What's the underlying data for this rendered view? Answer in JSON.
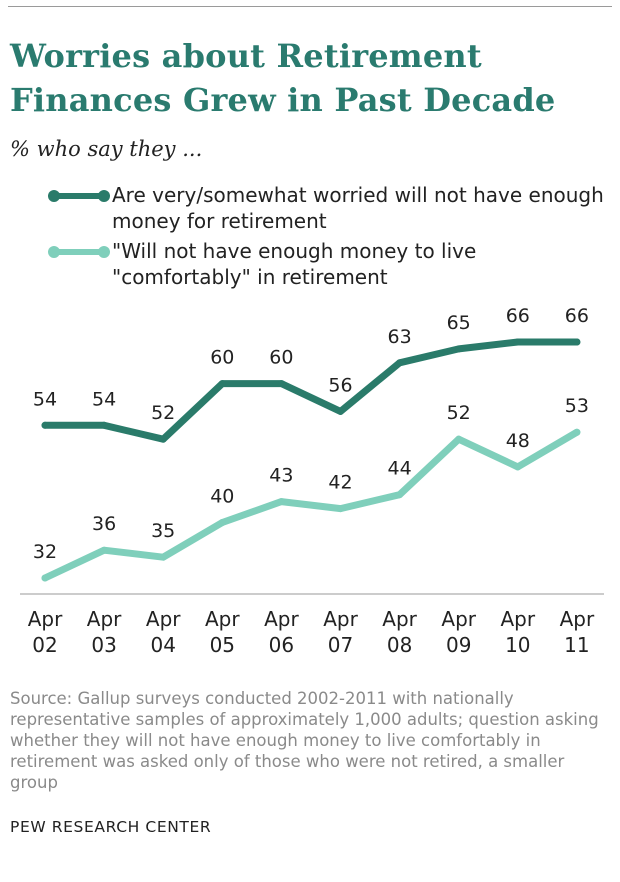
{
  "title": "Worries about Retirement Finances Grew in Past Decade",
  "subtitle": "% who say they ...",
  "legend": [
    {
      "label": "Are very/somewhat worried will not have enough money for retirement",
      "color": "#2a7b6a"
    },
    {
      "label": "\"Will not have enough money to live \"comfortably\" in retirement",
      "color": "#7fcfbb"
    }
  ],
  "chart_data": {
    "type": "line",
    "categories": [
      [
        "Apr",
        "02"
      ],
      [
        "Apr",
        "03"
      ],
      [
        "Apr",
        "04"
      ],
      [
        "Apr",
        "05"
      ],
      [
        "Apr",
        "06"
      ],
      [
        "Apr",
        "07"
      ],
      [
        "Apr",
        "08"
      ],
      [
        "Apr",
        "09"
      ],
      [
        "Apr",
        "10"
      ],
      [
        "Apr",
        "11"
      ]
    ],
    "series": [
      {
        "name": "Are very/somewhat worried will not have enough money for retirement",
        "color": "#2a7b6a",
        "values": [
          54,
          54,
          52,
          60,
          60,
          56,
          63,
          65,
          66,
          66
        ]
      },
      {
        "name": "\"Will not have enough money to live \"comfortably\" in retirement",
        "color": "#7fcfbb",
        "values": [
          32,
          36,
          35,
          40,
          43,
          42,
          44,
          52,
          48,
          53
        ]
      }
    ],
    "ylim": [
      30,
      70
    ],
    "grid": false,
    "legend_position": "top"
  },
  "source": "Source: Gallup surveys conducted 2002-2011 with nationally representative samples of approximately 1,000 adults; question asking whether they will not have enough money to live comfortably in retirement was asked only of those who were not retired, a smaller group",
  "footer": "PEW RESEARCH CENTER"
}
